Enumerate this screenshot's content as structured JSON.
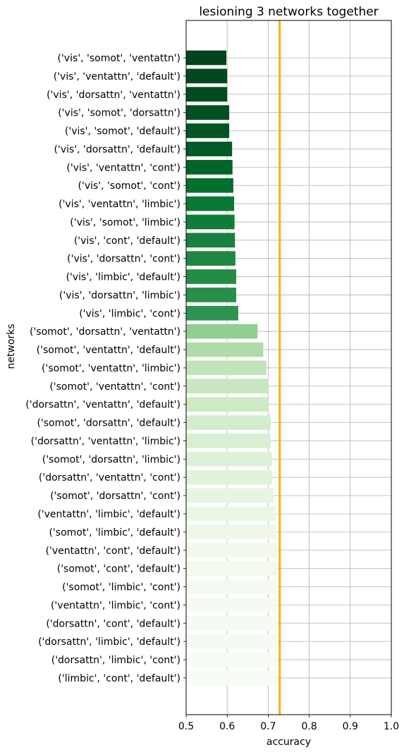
{
  "chart_data": {
    "type": "bar",
    "orientation": "horizontal",
    "title": "lesioning 3 networks together",
    "xlabel": "accuracy",
    "ylabel": "networks",
    "xlim": [
      0.5,
      1.0
    ],
    "xticks": [
      "0.5",
      "0.6",
      "0.7",
      "0.8",
      "0.9",
      "1.0"
    ],
    "grid": true,
    "reference_line": {
      "value": 0.728,
      "color": "#FFB000"
    },
    "categories": [
      "('vis', 'somot', 'ventattn')",
      "('vis', 'ventattn', 'default')",
      "('vis', 'dorsattn', 'ventattn')",
      "('vis', 'somot', 'dorsattn')",
      "('vis', 'somot', 'default')",
      "('vis', 'dorsattn', 'default')",
      "('vis', 'ventattn', 'cont')",
      "('vis', 'somot', 'cont')",
      "('vis', 'ventattn', 'limbic')",
      "('vis', 'somot', 'limbic')",
      "('vis', 'cont', 'default')",
      "('vis', 'dorsattn', 'cont')",
      "('vis', 'limbic', 'default')",
      "('vis', 'dorsattn', 'limbic')",
      "('vis', 'limbic', 'cont')",
      "('somot', 'dorsattn', 'ventattn')",
      "('somot', 'ventattn', 'default')",
      "('somot', 'ventattn', 'limbic')",
      "('somot', 'ventattn', 'cont')",
      "('dorsattn', 'ventattn', 'default')",
      "('somot', 'dorsattn', 'default')",
      "('dorsattn', 'ventattn', 'limbic')",
      "('somot', 'dorsattn', 'limbic')",
      "('dorsattn', 'ventattn', 'cont')",
      "('somot', 'dorsattn', 'cont')",
      "('ventattn', 'limbic', 'default')",
      "('somot', 'limbic', 'default')",
      "('ventattn', 'cont', 'default')",
      "('somot', 'cont', 'default')",
      "('somot', 'limbic', 'cont')",
      "('ventattn', 'limbic', 'cont')",
      "('dorsattn', 'cont', 'default')",
      "('dorsattn', 'limbic', 'default')",
      "('dorsattn', 'limbic', 'cont')",
      "('limbic', 'cont', 'default')"
    ],
    "values": [
      0.598,
      0.6,
      0.6,
      0.605,
      0.605,
      0.612,
      0.613,
      0.615,
      0.617,
      0.618,
      0.619,
      0.62,
      0.622,
      0.622,
      0.627,
      0.674,
      0.688,
      0.696,
      0.7,
      0.7,
      0.706,
      0.706,
      0.709,
      0.71,
      0.713,
      0.718,
      0.72,
      0.722,
      0.722,
      0.722,
      0.722,
      0.722,
      0.722,
      0.722,
      0.722
    ],
    "colors": [
      "#00441b",
      "#00481d",
      "#004c1e",
      "#005020",
      "#005522",
      "#005a25",
      "#006428",
      "#03702e",
      "#0b7734",
      "#117c38",
      "#17813d",
      "#1e8741",
      "#238b45",
      "#278f48",
      "#2c9450",
      "#90cf8f",
      "#afdca8",
      "#c2e4bb",
      "#c8e6c0",
      "#cdeac5",
      "#d3ecce",
      "#d8efd2",
      "#ddf1d7",
      "#e1f3dc",
      "#e6f5e1",
      "#ebf7e6",
      "#eef8ea",
      "#f0f9ec",
      "#f2faef",
      "#f3faf0",
      "#f4fbf1",
      "#f5fbf2",
      "#f5fbf3",
      "#f6fcf4",
      "#f7fcf5"
    ]
  }
}
